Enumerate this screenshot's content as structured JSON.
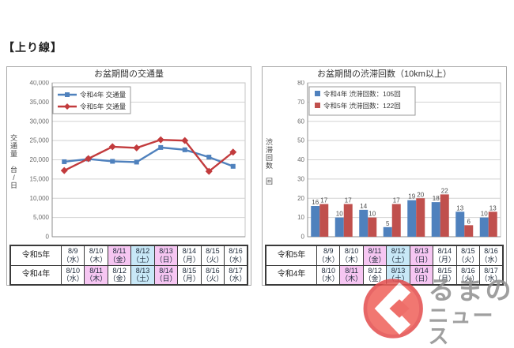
{
  "section_label": "【上り線】",
  "palette": {
    "series_blue": "#4f81bd",
    "series_red": "#c0504d",
    "line_red": "#c23b3d",
    "holiday_pink": "#f6c6f2",
    "saturday_blue": "#c8e8f7",
    "grid": "#d2d2d2",
    "axis": "#8c8c8c",
    "plot_border": "#c4c4c4",
    "tick_text": "#6b6b6b",
    "watermark_red": "#ef6059",
    "watermark_red_dark": "#e34c4c",
    "watermark_gray": "#8f8f8f"
  },
  "chart_data": [
    {
      "type": "line",
      "title": "お盆期間の交通量",
      "ylabel_groups": [
        "交通量",
        "台/日"
      ],
      "ylim": [
        0,
        40000
      ],
      "yticks": [
        "0",
        "5,000",
        "10,000",
        "15,000",
        "20,000",
        "25,000",
        "30,000",
        "35,000",
        "40,000"
      ],
      "categories": [
        "8/9",
        "8/10",
        "8/11",
        "8/12",
        "8/13",
        "8/14",
        "8/15",
        "8/16"
      ],
      "grid": true,
      "legend_position": "top-left",
      "series": [
        {
          "name": "令和4年 交通量",
          "color_key": "series_blue",
          "marker": "square",
          "values": [
            19500,
            20200,
            19600,
            19400,
            23200,
            22600,
            20700,
            18300
          ]
        },
        {
          "name": "令和5年 交通量",
          "color_key": "line_red",
          "marker": "diamond",
          "values": [
            17200,
            20300,
            23400,
            23100,
            25200,
            25000,
            17000,
            22000
          ]
        }
      ]
    },
    {
      "type": "bar",
      "title": "お盆期間の渋滞回数（10km以上）",
      "ylabel_groups": [
        "渋滞回数",
        "回"
      ],
      "ylim": [
        0,
        80
      ],
      "yticks": [
        "0",
        "10",
        "20",
        "30",
        "40",
        "50",
        "60",
        "70",
        "80"
      ],
      "categories": [
        "8/9",
        "8/10",
        "8/11",
        "8/12",
        "8/13",
        "8/14",
        "8/15",
        "8/16"
      ],
      "grid": true,
      "legend_position": "top-left",
      "data_labels": true,
      "series": [
        {
          "name": "令和4年 渋滞回数：105回",
          "color_key": "series_blue",
          "values": [
            16,
            10,
            14,
            5,
            19,
            18,
            13,
            10
          ]
        },
        {
          "name": "令和5年 渋滞回数：122回",
          "color_key": "series_red",
          "values": [
            17,
            17,
            10,
            17,
            20,
            22,
            6,
            13
          ]
        }
      ]
    }
  ],
  "date_table": {
    "rows": [
      {
        "label": "令和5年",
        "cells": [
          {
            "date": "8/9",
            "day": "（水）",
            "bg": null
          },
          {
            "date": "8/10",
            "day": "（木）",
            "bg": null
          },
          {
            "date": "8/11",
            "day": "（金）",
            "bg": "pink"
          },
          {
            "date": "8/12",
            "day": "（土）",
            "bg": "blue"
          },
          {
            "date": "8/13",
            "day": "（日）",
            "bg": "pink"
          },
          {
            "date": "8/14",
            "day": "（月）",
            "bg": null
          },
          {
            "date": "8/15",
            "day": "（火）",
            "bg": null
          },
          {
            "date": "8/16",
            "day": "（水）",
            "bg": null
          }
        ]
      },
      {
        "label": "令和4年",
        "cells": [
          {
            "date": "8/10",
            "day": "（水）",
            "bg": null
          },
          {
            "date": "8/11",
            "day": "（木）",
            "bg": "pink"
          },
          {
            "date": "8/12",
            "day": "（金）",
            "bg": null
          },
          {
            "date": "8/13",
            "day": "（土）",
            "bg": "blue"
          },
          {
            "date": "8/14",
            "day": "（日）",
            "bg": "pink"
          },
          {
            "date": "8/15",
            "day": "（月）",
            "bg": null
          },
          {
            "date": "8/16",
            "day": "（火）",
            "bg": null
          },
          {
            "date": "8/17",
            "day": "（水）",
            "bg": null
          }
        ]
      }
    ]
  },
  "watermark": {
    "line1": "るまの",
    "line2": "ニュース"
  }
}
